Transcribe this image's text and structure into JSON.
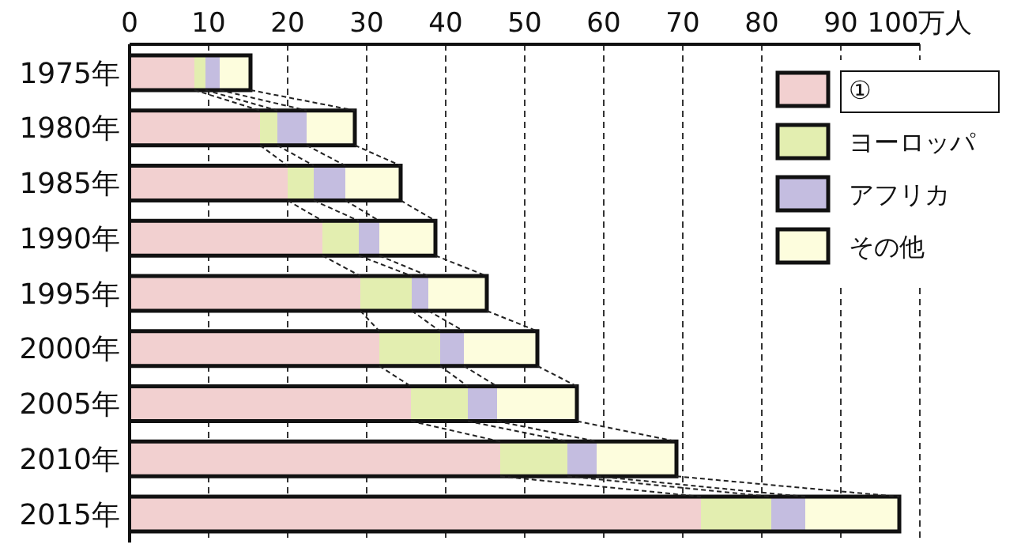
{
  "chart_data": {
    "type": "bar",
    "orientation": "horizontal",
    "stacked": true,
    "categories": [
      "1975年",
      "1980年",
      "1985年",
      "1990年",
      "1995年",
      "2000年",
      "2005年",
      "2010年",
      "2015年"
    ],
    "series": [
      {
        "name": "①",
        "color": "#f2d0d0",
        "values": [
          8.2,
          16.5,
          20.0,
          24.4,
          29.2,
          31.6,
          35.6,
          46.9,
          72.3
        ]
      },
      {
        "name": "ヨーロッパ",
        "color": "#e3eeb0",
        "values": [
          1.4,
          2.2,
          3.3,
          4.6,
          6.5,
          7.7,
          7.2,
          8.5,
          8.9
        ]
      },
      {
        "name": "アフリカ",
        "color": "#c4bde0",
        "values": [
          1.8,
          3.7,
          4.0,
          2.6,
          2.1,
          3.0,
          3.7,
          3.7,
          4.3
        ]
      },
      {
        "name": "その他",
        "color": "#fdfddd",
        "values": [
          3.9,
          6.1,
          7.0,
          7.1,
          7.4,
          9.3,
          10.1,
          10.1,
          11.9
        ]
      }
    ],
    "xlim": [
      0,
      100
    ],
    "xticks": [
      0,
      10,
      20,
      30,
      40,
      50,
      60,
      70,
      80,
      90,
      {
        "value": 100,
        "label": "100万人"
      }
    ],
    "grid": "x",
    "legend": "top right"
  }
}
